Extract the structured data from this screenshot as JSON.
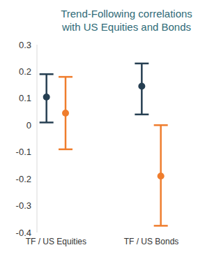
{
  "chart_data": {
    "type": "scatter",
    "title": "Trend-Following correlations with US Equities and Bonds",
    "categories": [
      "TF / US Equities",
      "TF / US Bonds"
    ],
    "series": [
      {
        "color": "#263f52",
        "values": [
          0.105,
          0.145
        ],
        "errors": [
          [
            0.095,
            0.085
          ],
          [
            0.105,
            0.085
          ]
        ]
      },
      {
        "color": "#ef7d2d",
        "values": [
          0.045,
          -0.19
        ],
        "errors": [
          [
            0.135,
            0.135
          ],
          [
            0.185,
            0.19
          ]
        ]
      }
    ],
    "ylim": [
      -0.4,
      0.3
    ],
    "yticks": [
      -0.4,
      -0.3,
      -0.2,
      -0.1,
      0,
      0.1,
      0.2,
      0.3
    ],
    "grid": false
  }
}
